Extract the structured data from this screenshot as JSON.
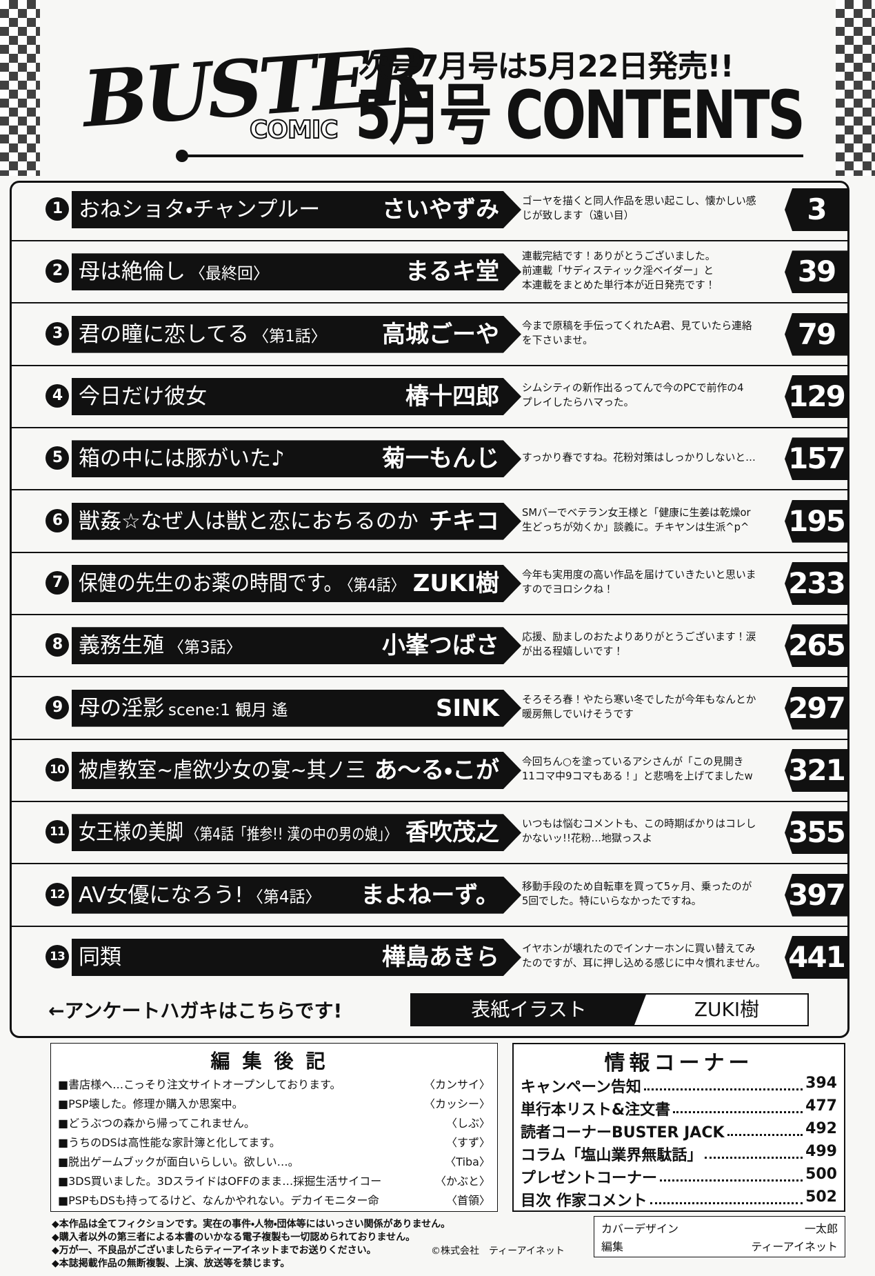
{
  "header": {
    "logo": "BUSTER",
    "logo_sub": "COMIC",
    "next_issue": "次号7月号は5月22日発売!!",
    "title": "5月号 CONTENTS"
  },
  "entries": [
    {
      "number": 1,
      "title": "おねショタ・チャンプルー",
      "author": "さいやずみ",
      "comment": [
        "ゴーヤを描くと同人作品を思い起こし、懐かしい感",
        "じが致します（遠い目）"
      ],
      "page": 3
    },
    {
      "number": 2,
      "title": "母は絶倫し",
      "subtitle": "〈最終回〉",
      "author": "まるキ堂",
      "comment": [
        "連載完結です！ありがとうございました。",
        "前連載「サディスティック淫ベイダー」と",
        "本連載をまとめた単行本が近日発売です！"
      ],
      "page": 39
    },
    {
      "number": 3,
      "title": "君の瞳に恋してる",
      "subtitle": "〈第1話〉",
      "author": "高城ごーや",
      "comment": [
        "今まで原稿を手伝ってくれたA君、見ていたら連絡",
        "を下さいませ。"
      ],
      "page": 79
    },
    {
      "number": 4,
      "title": "今日だけ彼女",
      "author": "椿十四郎",
      "comment": [
        "シムシティの新作出るってんで今のPCで前作の4",
        "プレイしたらハマった。"
      ],
      "page": 129
    },
    {
      "number": 5,
      "title": "箱の中には豚がいた♪",
      "author": "菊一もんじ",
      "comment": [
        "すっかり春ですね。花粉対策はしっかりしないと…"
      ],
      "page": 157
    },
    {
      "number": 6,
      "title": "獣姦☆なぜ人は獣と恋におちるのか",
      "author": "チキコ",
      "comment": [
        "SMバーでベテラン女王様と「健康に生姜は乾燥or",
        "生どっちが効くか」談義に。チキヤンは生派^p^"
      ],
      "page": 195
    },
    {
      "number": 7,
      "title": "保健の先生のお薬の時間です。",
      "subtitle": "〈第4話〉",
      "author": "ZUKI樹",
      "comment": [
        "今年も実用度の高い作品を届けていきたいと思いま",
        "すのでヨロシクね！"
      ],
      "page": 233
    },
    {
      "number": 8,
      "title": "義務生殖",
      "subtitle": "〈第3話〉",
      "author": "小峯つばさ",
      "comment": [
        "応援、励ましのおたよりありがとうございます！涙",
        "が出る程嬉しいです！"
      ],
      "page": 265
    },
    {
      "number": 9,
      "title": "母の淫影",
      "subtitle": "scene:1 観月 遙",
      "author": "SINK",
      "comment": [
        "そろそろ春！やたら寒い冬でしたが今年もなんとか",
        "暖房無しでいけそうです"
      ],
      "page": 297
    },
    {
      "number": 10,
      "title": "被虐教室~虐欲少女の宴~其ノ三",
      "author": "あ〜る・こが",
      "comment": [
        "今回ちん○を塗っているアシさんが「この見開き",
        "11コマ中9コマもある！」と悲鳴を上げてましたw"
      ],
      "page": 321
    },
    {
      "number": 11,
      "title": "女王様の美脚",
      "subtitle": "〈第4話「推参!! 漢の中の男の娘」〉",
      "author": "香吹茂之",
      "comment": [
        "いつもは悩むコメントも、この時期ばかりはコレし",
        "かないッ!!花粉…地獄っスよ"
      ],
      "page": 355
    },
    {
      "number": 12,
      "title": "AV女優になろう!",
      "subtitle": "〈第4話〉",
      "author": "まよねーず。",
      "comment": [
        "移動手段のため自転車を買って5ヶ月、乗ったのが",
        "5回でした。特にいらなかったですね。"
      ],
      "page": 397
    },
    {
      "number": 13,
      "title": "同類",
      "author": "樺島あきら",
      "comment": [
        "イヤホンが壊れたのでインナーホンに買い替えてみ",
        "たのですが、耳に押し込める感じに中々慣れません。"
      ],
      "page": 441
    }
  ],
  "cover": {
    "link": "←アンケートハガキはこちらです!",
    "label": "表紙イラスト",
    "artist": "ZUKI樹"
  },
  "editors_notes": {
    "title": "編集後記",
    "items": [
      {
        "text": "■書店様へ…こっそり注文サイトオープンしております。",
        "signature": "〈カンサイ〉"
      },
      {
        "text": "■PSP壊した。修理か購入か思案中。",
        "signature": "〈カッシー〉"
      },
      {
        "text": "■どうぶつの森から帰ってこれません。",
        "signature": "〈しぶ〉"
      },
      {
        "text": "■うちのDSは高性能な家計簿と化してます。",
        "signature": "〈すず〉"
      },
      {
        "text": "■脱出ゲームブックが面白いらしい。欲しい…。",
        "signature": "〈Tiba〉"
      },
      {
        "text": "■3DS買いました。3DスライドはOFFのまま…採掘生活サイコー",
        "signature": "〈かぶと〉"
      },
      {
        "text": "■PSPもDSも持ってるけど、なんかやれない。デカイモニター命",
        "signature": "〈首領〉"
      }
    ]
  },
  "info_corner": {
    "title": "情報コーナー",
    "items": [
      {
        "label": "キャンペーン告知",
        "page": 394
      },
      {
        "label": "単行本リスト&注文書",
        "page": 477
      },
      {
        "label": "読者コーナーBUSTER JACK",
        "page": 492
      },
      {
        "label": "コラム「塩山業界無駄話」",
        "page": 499
      },
      {
        "label": "プレゼントコーナー",
        "page": 500
      },
      {
        "label": "目次 作家コメント",
        "page": 502
      }
    ]
  },
  "disclaimers": [
    "◆本作品は全てフィクションです。実在の事件・人物・団体等にはいっさい関係がありません。",
    "◆購入者以外の第三者による本書のいかなる電子複製も一切認められておりません。",
    "◆万が一、不良品がございましたらティーアイネットまでお送りください。",
    "◆本誌掲載作品の無断複製、上演、放送等を禁じます。"
  ],
  "copyright": "©株式会社　ティーアイネット",
  "credits": [
    {
      "role": "カバーデザイン",
      "name": "一太郎"
    },
    {
      "role": "編集",
      "name": "ティーアイネット"
    }
  ]
}
